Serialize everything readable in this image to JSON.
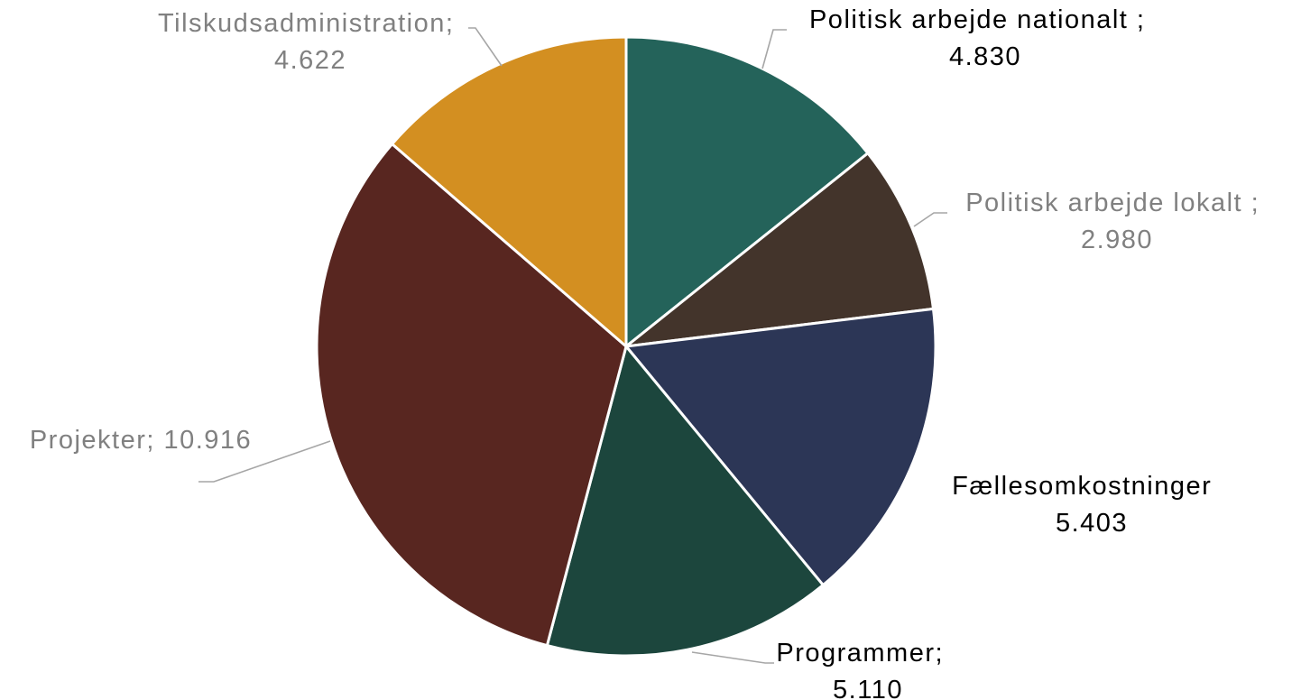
{
  "chart_data": {
    "type": "pie",
    "title": "",
    "categories": [
      "Politisk arbejde nationalt",
      "Politisk arbejde lokalt",
      "Fællesomkostninger",
      "Programmer",
      "Projekter",
      "Tilskudsadministration"
    ],
    "values": [
      4830,
      2980,
      5403,
      5110,
      10916,
      4622
    ],
    "start_angle_deg": 0,
    "direction": "clockwise",
    "colors": [
      "#24635a",
      "#43342b",
      "#2c3656",
      "#1c463d",
      "#582620",
      "#d38f21"
    ],
    "labels": [
      {
        "name": "Politisk arbejde nationalt ;",
        "value": "4.830",
        "color": "#000000"
      },
      {
        "name": "Politisk arbejde lokalt ;",
        "value": "2.980",
        "color": "#808080"
      },
      {
        "name": "Fællesomkostninger",
        "value": "5.403",
        "color": "#000000"
      },
      {
        "name": "Programmer;",
        "value": "5.110",
        "color": "#000000"
      },
      {
        "name": "Projekter; 10.916",
        "value": "",
        "color": "#808080"
      },
      {
        "name": "Tilskudsadministration;",
        "value": "4.622",
        "color": "#808080"
      }
    ]
  }
}
